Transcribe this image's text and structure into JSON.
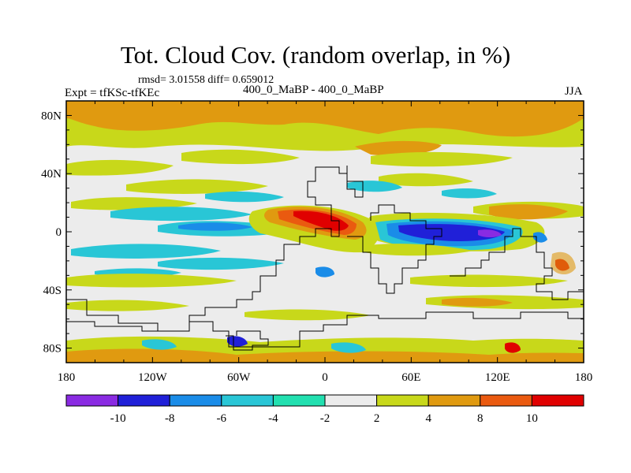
{
  "title": "Tot. Cloud Cov. (random overlap, in %)",
  "stats": "rmsd= 3.01558 diff= 0.659012",
  "experiment_label": "Expt = tfKSc-tfKEc",
  "comparison_label": "400_0_MaBP - 400_0_MaBP",
  "season": "JJA",
  "map": {
    "projection": "cylindrical-equidistant",
    "lon_range": [
      -180,
      180
    ],
    "lat_range": [
      -90,
      90
    ],
    "x_tick_labels": [
      {
        "lon": -180,
        "label": "180"
      },
      {
        "lon": -120,
        "label": "120W"
      },
      {
        "lon": -60,
        "label": "60W"
      },
      {
        "lon": 0,
        "label": "0"
      },
      {
        "lon": 60,
        "label": "60E"
      },
      {
        "lon": 120,
        "label": "120E"
      },
      {
        "lon": 180,
        "label": "180"
      }
    ],
    "y_tick_labels": [
      {
        "lat": 80,
        "label": "80N"
      },
      {
        "lat": 40,
        "label": "40N"
      },
      {
        "lat": 0,
        "label": "0"
      },
      {
        "lat": -40,
        "label": "40S"
      },
      {
        "lat": -80,
        "label": "80S"
      }
    ]
  },
  "colorbar": {
    "colors": [
      "#8a2be2",
      "#2020d8",
      "#1a8ce8",
      "#29c6d6",
      "#22e0b0",
      "#ececec",
      "#c8d81a",
      "#e09a10",
      "#ea5a10",
      "#e00000"
    ],
    "labels": [
      "-10",
      "-8",
      "-6",
      "-4",
      "-2",
      "2",
      "4",
      "8",
      "10"
    ]
  },
  "colors": {
    "background": "#ececec",
    "contour_line": "#000000"
  }
}
